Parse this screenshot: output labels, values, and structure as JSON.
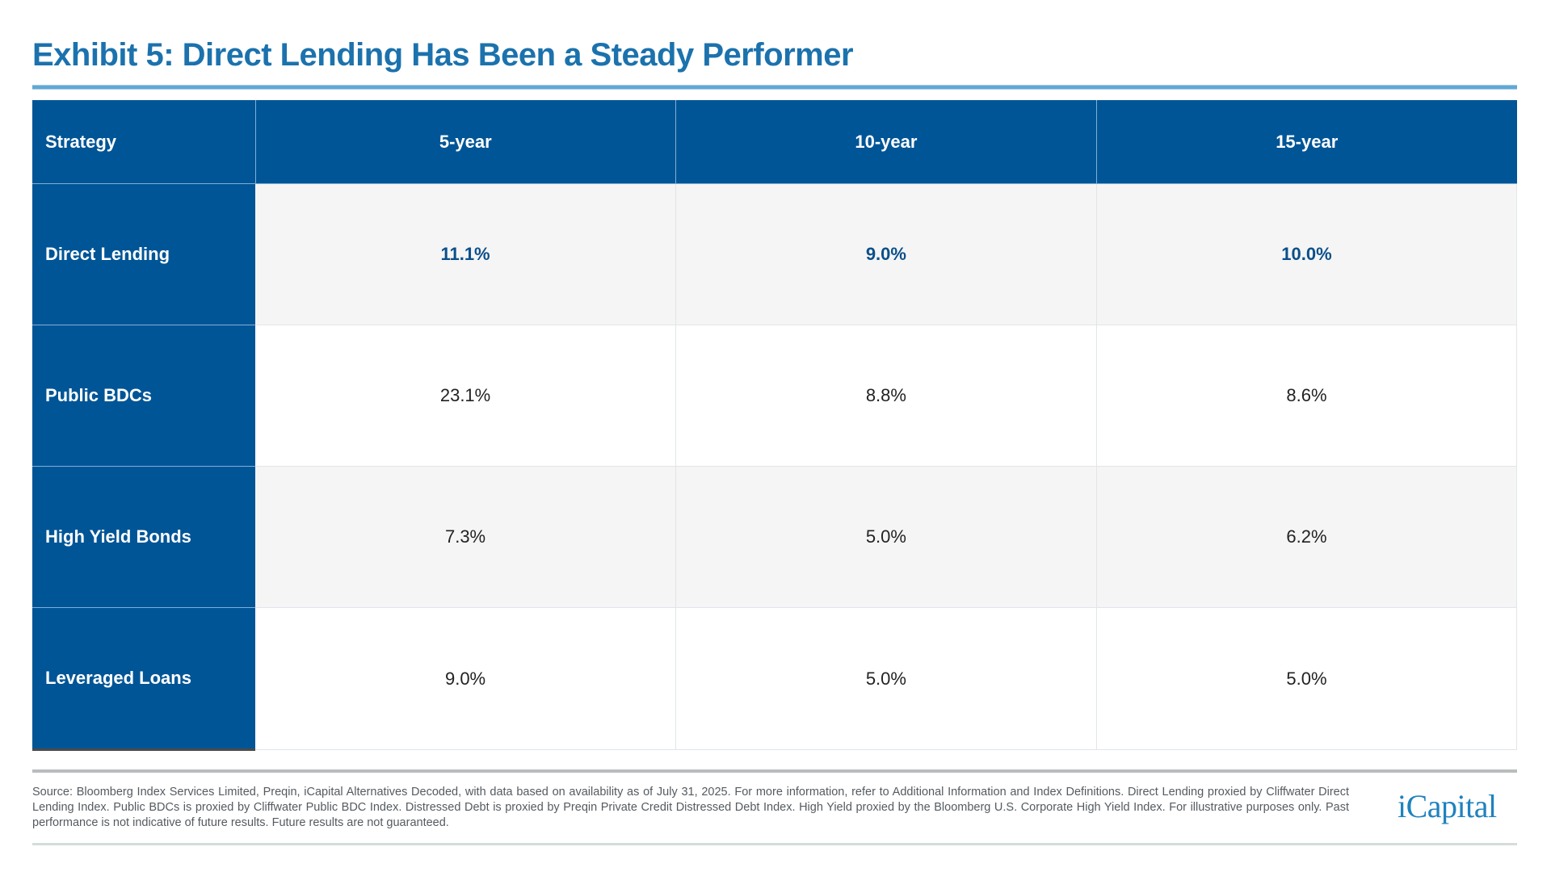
{
  "title": "Exhibit 5: Direct Lending Has Been a Steady Performer",
  "colors": {
    "title": "#1b72ad",
    "header_bg": "#005596",
    "highlight_text": "#0b4f8a",
    "shaded_row": "#f5f5f5"
  },
  "table": {
    "headers": [
      "Strategy",
      "5-year",
      "10-year",
      "15-year"
    ],
    "rows": [
      {
        "strategy": "Direct Lending",
        "values": [
          "11.1%",
          "9.0%",
          "10.0%"
        ],
        "highlight": true
      },
      {
        "strategy": "Public BDCs",
        "values": [
          "23.1%",
          "8.8%",
          "8.6%"
        ],
        "highlight": false
      },
      {
        "strategy": "High Yield Bonds",
        "values": [
          "7.3%",
          "5.0%",
          "6.2%"
        ],
        "highlight": false
      },
      {
        "strategy": "Leveraged Loans",
        "values": [
          "9.0%",
          "5.0%",
          "5.0%"
        ],
        "highlight": false
      }
    ]
  },
  "chart_data": {
    "type": "table",
    "title": "Exhibit 5: Direct Lending Has Been a Steady Performer",
    "categories": [
      "5-year",
      "10-year",
      "15-year"
    ],
    "series": [
      {
        "name": "Direct Lending",
        "values": [
          11.1,
          9.0,
          10.0
        ]
      },
      {
        "name": "Public BDCs",
        "values": [
          23.1,
          8.8,
          8.6
        ]
      },
      {
        "name": "High Yield Bonds",
        "values": [
          7.3,
          5.0,
          6.2
        ]
      },
      {
        "name": "Leveraged Loans",
        "values": [
          9.0,
          5.0,
          5.0
        ]
      }
    ],
    "units": "%"
  },
  "footnote": "Source: Bloomberg Index Services Limited, Preqin, iCapital Alternatives Decoded, with data based on availability as of July 31, 2025. For more information, refer to Additional Information and Index Definitions. Direct Lending proxied by Cliffwater Direct Lending Index. Public BDCs is proxied by Cliffwater Public BDC Index. Distressed Debt is proxied by Preqin Private Credit Distressed Debt Index. High Yield proxied by the Bloomberg U.S. Corporate High Yield Index. For illustrative purposes only. Past performance is not indicative of future results. Future results are not guaranteed.",
  "logo": "iCapital"
}
